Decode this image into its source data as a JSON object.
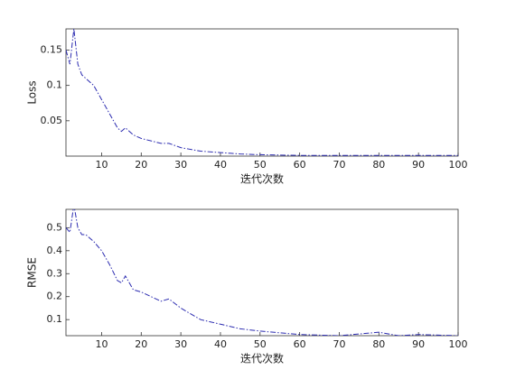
{
  "chart_data": [
    {
      "type": "line",
      "ylabel": "Loss",
      "xlabel": "迭代次数",
      "color": "#2b2bb0",
      "x": [
        1,
        2,
        3,
        4,
        5,
        6,
        8,
        10,
        12,
        14,
        15,
        16,
        18,
        20,
        25,
        27,
        30,
        35,
        40,
        45,
        50,
        60,
        70,
        80,
        90,
        100
      ],
      "values": [
        0.15,
        0.13,
        0.18,
        0.13,
        0.115,
        0.11,
        0.1,
        0.08,
        0.06,
        0.04,
        0.035,
        0.04,
        0.03,
        0.025,
        0.018,
        0.018,
        0.012,
        0.007,
        0.005,
        0.003,
        0.002,
        0.001,
        0.001,
        0.001,
        0.001,
        0.001
      ],
      "xlim": [
        1,
        100
      ],
      "ylim": [
        0,
        0.18
      ],
      "xticks": [
        10,
        20,
        30,
        40,
        50,
        60,
        70,
        80,
        90,
        100
      ],
      "yticks": [
        0.05,
        0.1,
        0.15
      ]
    },
    {
      "type": "line",
      "ylabel": "RMSE",
      "xlabel": "迭代次数",
      "color": "#2b2bb0",
      "x": [
        1,
        2,
        3,
        4,
        5,
        6,
        8,
        10,
        12,
        14,
        15,
        16,
        18,
        20,
        25,
        27,
        30,
        35,
        40,
        45,
        50,
        60,
        70,
        80,
        85,
        90,
        100
      ],
      "values": [
        0.5,
        0.48,
        0.6,
        0.5,
        0.47,
        0.47,
        0.44,
        0.4,
        0.34,
        0.27,
        0.26,
        0.29,
        0.23,
        0.22,
        0.18,
        0.19,
        0.15,
        0.1,
        0.08,
        0.06,
        0.05,
        0.035,
        0.03,
        0.045,
        0.03,
        0.035,
        0.03
      ],
      "xlim": [
        1,
        100
      ],
      "ylim": [
        0.03,
        0.58
      ],
      "xticks": [
        10,
        20,
        30,
        40,
        50,
        60,
        70,
        80,
        90,
        100
      ],
      "yticks": [
        0.1,
        0.2,
        0.3,
        0.4,
        0.5
      ]
    }
  ]
}
